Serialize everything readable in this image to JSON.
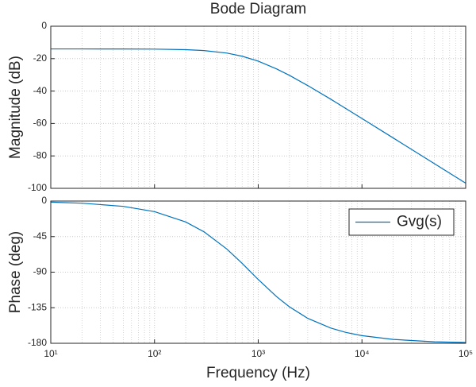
{
  "chart_data": [
    {
      "type": "line",
      "title": "Bode Diagram",
      "ylabel": "Magnitude (dB)",
      "x": [
        10,
        20,
        50,
        100,
        200,
        300,
        500,
        700,
        1000,
        1500,
        2000,
        3000,
        5000,
        7000,
        10000,
        20000,
        50000,
        100000
      ],
      "series": [
        {
          "color": "#0072bd",
          "values": [
            -14.0,
            -14.0,
            -14.03,
            -14.12,
            -14.47,
            -15.02,
            -16.58,
            -18.5,
            -21.55,
            -26.3,
            -30.3,
            -36.6,
            -45.0,
            -50.8,
            -56.9,
            -68.9,
            -84.8,
            -96.8
          ]
        }
      ],
      "xscale": "log",
      "xlim": [
        10,
        100000
      ],
      "xticks": [
        10,
        100,
        1000,
        10000,
        100000
      ],
      "ylim": [
        -100,
        0
      ],
      "yticks": [
        0,
        -20,
        -40,
        -60,
        -80,
        -100
      ],
      "grid": true
    },
    {
      "type": "line",
      "ylabel": "Phase (deg)",
      "xlabel": "Frequency  (Hz)",
      "x": [
        10,
        20,
        50,
        100,
        200,
        300,
        500,
        700,
        1000,
        1500,
        2000,
        3000,
        5000,
        7000,
        10000,
        20000,
        50000,
        100000
      ],
      "series": [
        {
          "name": "Gvg(s)",
          "color": "#0072bd",
          "values": [
            -1.35,
            -2.69,
            -6.73,
            -13.42,
            -26.48,
            -38.9,
            -60.9,
            -78.9,
            -99.3,
            -120.9,
            -133.9,
            -148.4,
            -160.7,
            -166.2,
            -170.3,
            -175.1,
            -178.1,
            -179.0
          ]
        }
      ],
      "xscale": "log",
      "xlim": [
        10,
        100000
      ],
      "xticks": [
        {
          "value": 10,
          "label": "10¹"
        },
        {
          "value": 100,
          "label": "10²"
        },
        {
          "value": 1000,
          "label": "10³"
        },
        {
          "value": 10000,
          "label": "10⁴"
        },
        {
          "value": 100000,
          "label": "10⁵"
        }
      ],
      "ylim": [
        -180,
        0
      ],
      "yticks": [
        0,
        -45,
        -90,
        -135,
        -180
      ],
      "grid": true,
      "legend": "northeast"
    }
  ]
}
